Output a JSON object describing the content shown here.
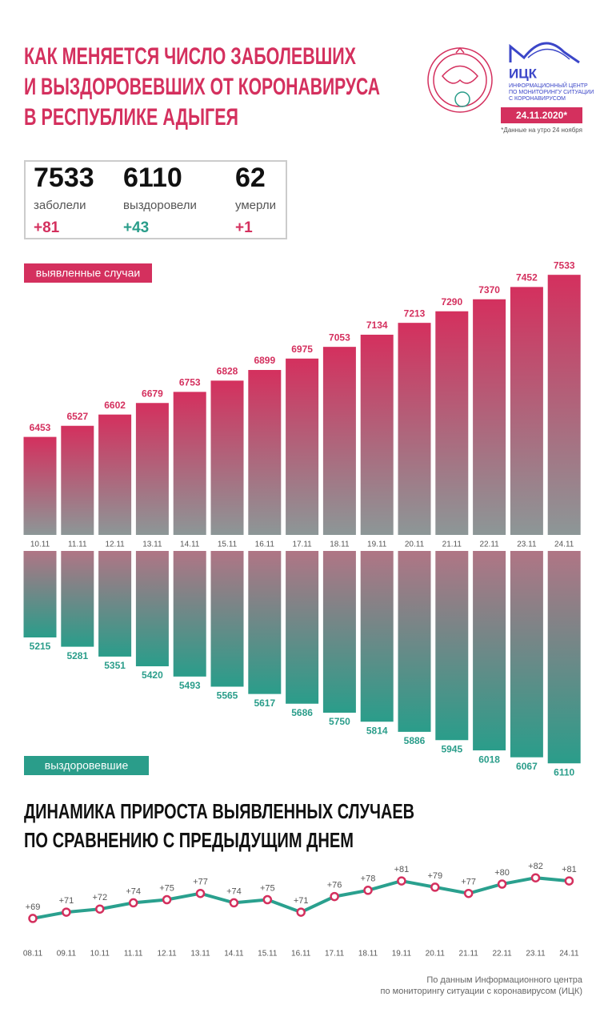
{
  "header": {
    "title": [
      "КАК МЕНЯЕТСЯ ЧИСЛО ЗАБОЛЕВШИХ",
      "И ВЫЗДОРОВЕВШИХ ОТ КОРОНАВИРУСА",
      "В РЕСПУБЛИКЕ АДЫГЕЯ"
    ],
    "logo_name": "ИЦК",
    "logo_text": [
      "ИНФОРМАЦИОННЫЙ ЦЕНТР",
      "ПО МОНИТОРИНГУ СИТУАЦИИ",
      "С КОРОНАВИРУСОМ"
    ],
    "date": "24.11.2020*",
    "date_note": "*Данные на утро 24 ноября"
  },
  "stats": [
    {
      "value": 7533,
      "label": "заболели",
      "delta": "+81"
    },
    {
      "value": 6110,
      "label": "выздоровели",
      "delta": "+43"
    },
    {
      "value": 62,
      "label": "умерли",
      "delta": "+1"
    }
  ],
  "chart_data": [
    {
      "type": "bar",
      "label": "выявленные случаи",
      "color": "#d4305e",
      "categories": [
        "10.11",
        "11.11",
        "12.11",
        "13.11",
        "14.11",
        "15.11",
        "16.11",
        "17.11",
        "18.11",
        "19.11",
        "20.11",
        "21.11",
        "22.11",
        "23.11",
        "24.11"
      ],
      "values": [
        6453,
        6527,
        6602,
        6679,
        6753,
        6828,
        6899,
        6975,
        7053,
        7134,
        7213,
        7290,
        7370,
        7452,
        7533
      ],
      "ylim": [
        5800,
        7550
      ]
    },
    {
      "type": "bar",
      "label": "выздоровевшие",
      "color": "#2a9d8a",
      "values": [
        5215,
        5281,
        5351,
        5420,
        5493,
        5565,
        5617,
        5686,
        5750,
        5814,
        5886,
        5945,
        6018,
        6067,
        6110
      ],
      "ylim": [
        4600,
        6120
      ],
      "inverted": true
    },
    {
      "type": "line",
      "title": [
        "ДИНАМИКА ПРИРОСТА ВЫЯВЛЕННЫХ СЛУЧАЕВ",
        "ПО СРАВНЕНИЮ С ПРЕДЫДУЩИМ ДНЕМ"
      ],
      "color": "#2aa08e",
      "marker_color": "#d4305e",
      "categories": [
        "08.11",
        "09.11",
        "10.11",
        "11.11",
        "12.11",
        "13.11",
        "14.11",
        "15.11",
        "16.11",
        "17.11",
        "18.11",
        "19.11",
        "20.11",
        "21.11",
        "22.11",
        "23.11",
        "24.11"
      ],
      "values": [
        69,
        71,
        72,
        74,
        75,
        77,
        74,
        75,
        71,
        76,
        78,
        81,
        79,
        77,
        80,
        82,
        81
      ],
      "value_labels": [
        "+69",
        "+71",
        "+72",
        "+74",
        "+75",
        "+77",
        "+74",
        "+75",
        "+71",
        "+76",
        "+78",
        "+81",
        "+79",
        "+77",
        "+80",
        "+82",
        "+81"
      ],
      "ylim": [
        60,
        90
      ]
    }
  ],
  "footer": [
    "По данным Информационного центра",
    "по мониторингу ситуации с коронавирусом (ИЦК)"
  ]
}
